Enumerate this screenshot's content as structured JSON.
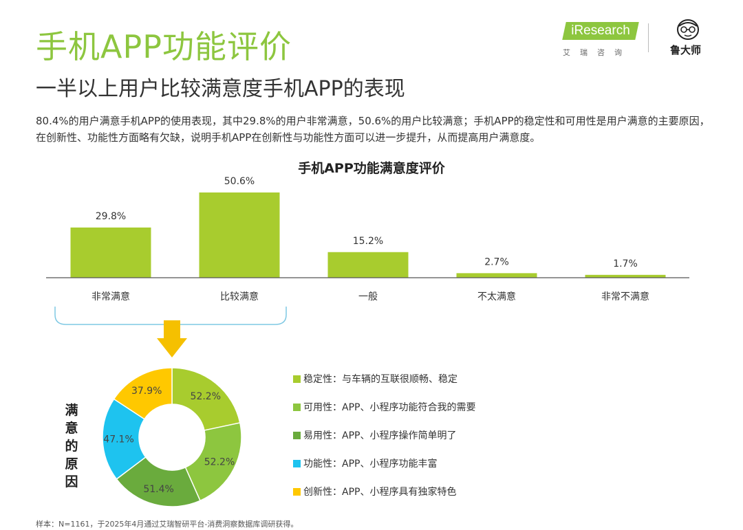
{
  "title": "手机APP功能评价",
  "subtitle": "一半以上用户比较满意度手机APP的表现",
  "logo": {
    "brand": "iResearch",
    "brand_cn": "艾瑞咨询",
    "partner": "鲁大师"
  },
  "description": "80.4%的用户满意手机APP的使用表现，其中29.8%的用户非常满意，50.6%的用户比较满意；手机APP的稳定性和可用性是用户满意的主要原因，在创新性、功能性方面略有欠缺，说明手机APP在创新性与功能性方面可以进一步提升，从而提高用户满意度。",
  "side_label": "满意的原因",
  "footnote": "样本：N=1161，于2025年4月通过艾瑞智研平台-消费洞察数据库调研获得。",
  "colors": {
    "bar": "#a8cc2e",
    "stability": "#a8cc2e",
    "usability": "#8dc63f",
    "ease": "#6aab3d",
    "function": "#1ec3ef",
    "innovation": "#ffc800",
    "arrow": "#f5c000",
    "brace": "#7ec8e3"
  },
  "chart_data": [
    {
      "type": "bar",
      "title": "手机APP功能满意度评价",
      "categories": [
        "非常满意",
        "比较满意",
        "一般",
        "不太满意",
        "非常不满意"
      ],
      "values": [
        29.8,
        50.6,
        15.2,
        2.7,
        1.7
      ],
      "labels": [
        "29.8%",
        "50.6%",
        "15.2%",
        "2.7%",
        "1.7%"
      ],
      "xlabel": "",
      "ylabel": "",
      "grid": false
    },
    {
      "type": "pie",
      "subtype": "donut",
      "categories": [
        "稳定性",
        "可用性",
        "易用性",
        "功能性",
        "创新性"
      ],
      "values": [
        52.2,
        52.2,
        51.4,
        47.1,
        37.9
      ],
      "labels": [
        "52.2%",
        "52.2%",
        "51.4%",
        "47.1%",
        "37.9%"
      ],
      "legend": [
        {
          "text": "稳定性：与车辆的互联很顺畅、稳定",
          "color_key": "stability"
        },
        {
          "text": "可用性：APP、小程序功能符合我的需要",
          "color_key": "usability"
        },
        {
          "text": "易用性：APP、小程序操作简单明了",
          "color_key": "ease"
        },
        {
          "text": "功能性：APP、小程序功能丰富",
          "color_key": "function"
        },
        {
          "text": "创新性：APP、小程序具有独家特色",
          "color_key": "innovation"
        }
      ],
      "legend_position": "right"
    }
  ]
}
